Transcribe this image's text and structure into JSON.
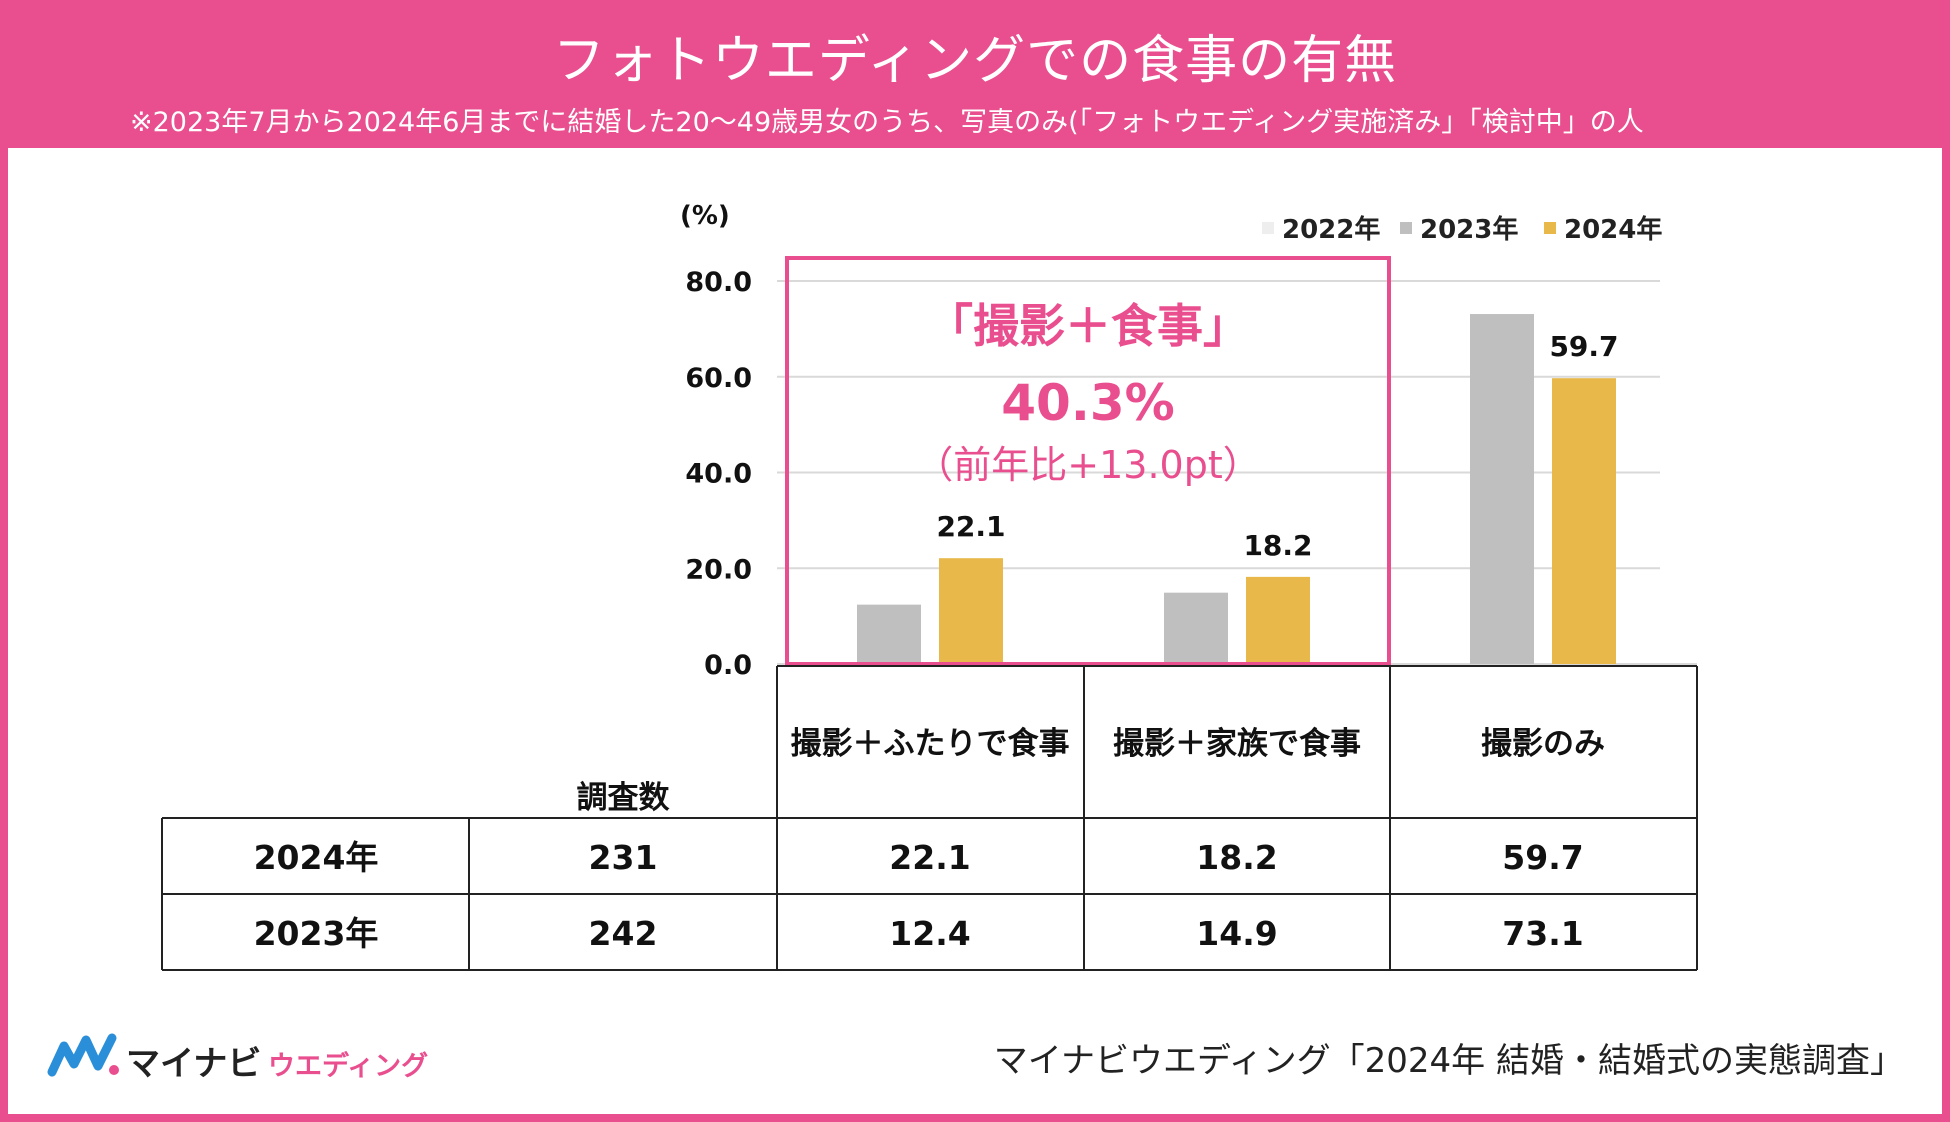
{
  "header": {
    "title": "フォトウエディングでの食事の有無",
    "subtitle": "※2023年7月から2024年6月までに結婚した20～49歳男女のうち、写真のみ(「フォトウエディング実施済み」「検討中」の人"
  },
  "chart_data": {
    "type": "bar",
    "unit_label": "(%)",
    "ylim": [
      0,
      80
    ],
    "yticks": [
      "80.0",
      "60.0",
      "40.0",
      "20.0",
      "0.0"
    ],
    "yticks_values": [
      80,
      60,
      40,
      20,
      0
    ],
    "categories": [
      "撮影＋ふたりで食事",
      "撮影＋家族で食事",
      "撮影のみ"
    ],
    "series": [
      {
        "name": "2022年",
        "color": "#eeeeee",
        "values": [
          null,
          null,
          null
        ]
      },
      {
        "name": "2023年",
        "color": "#bfbfbf",
        "values": [
          12.4,
          14.9,
          73.1
        ]
      },
      {
        "name": "2024年",
        "color": "#e8b84a",
        "values": [
          22.1,
          18.2,
          59.7
        ]
      }
    ],
    "data_labels": [
      {
        "category": 0,
        "series": 2,
        "text": "22.1"
      },
      {
        "category": 1,
        "series": 2,
        "text": "18.2"
      },
      {
        "category": 2,
        "series": 2,
        "text": "59.7"
      }
    ],
    "legend_position": "top-right",
    "annotation": {
      "title": "「撮影＋食事」",
      "value": "40.3%",
      "note": "（前年比+13.0pt）"
    }
  },
  "table": {
    "count_header": "調査数",
    "column_headers": [
      "撮影＋ふたりで食事",
      "撮影＋家族で食事",
      "撮影のみ"
    ],
    "rows": [
      {
        "year": "2024年",
        "count": "231",
        "values": [
          "22.1",
          "18.2",
          "59.7"
        ]
      },
      {
        "year": "2023年",
        "count": "242",
        "values": [
          "12.4",
          "14.9",
          "73.1"
        ]
      }
    ]
  },
  "footer": {
    "logo_main": "マイナビ",
    "logo_sub": "ウエディング",
    "source": "マイナビウエディング「2024年 結婚・結婚式の実態調査」"
  },
  "colors": {
    "accent": "#e94e8e",
    "bar2023": "#bfbfbf",
    "bar2024": "#e8b84a",
    "bar2022": "#eeeeee"
  }
}
